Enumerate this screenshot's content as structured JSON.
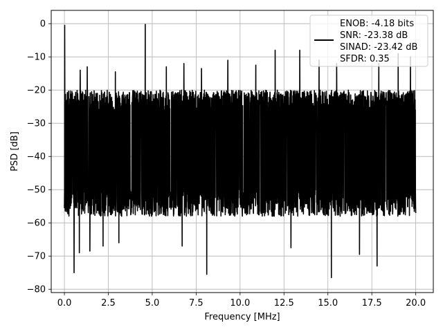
{
  "chart_data": {
    "type": "line",
    "xlabel": "Frequency [MHz]",
    "ylabel": "PSD [dB]",
    "xlim": [
      -0.75,
      21.0
    ],
    "ylim": [
      -81,
      4
    ],
    "x_ticks": [
      0.0,
      2.5,
      5.0,
      7.5,
      10.0,
      12.5,
      15.0,
      17.5,
      20.0
    ],
    "x_tick_labels": [
      "0.0",
      "2.5",
      "5.0",
      "7.5",
      "10.0",
      "12.5",
      "15.0",
      "17.5",
      "20.0"
    ],
    "y_ticks": [
      0,
      -10,
      -20,
      -30,
      -40,
      -50,
      -60,
      -70,
      -80
    ],
    "y_tick_labels": [
      "0",
      "−10",
      "−20",
      "−30",
      "−40",
      "−50",
      "−60",
      "−70",
      "−80"
    ],
    "grid": true,
    "legend_position": "upper right",
    "legend_lines": [
      "ENOB: -4.18 bits",
      "SNR: -23.38 dB",
      "SINAD: -23.42 dB",
      "SFDR: 0.35"
    ],
    "series": [
      {
        "color": "#000000",
        "frequency_range_mhz": [
          0.0,
          20.0
        ],
        "noise_floor_db": {
          "typical_low": -55,
          "typical_high": -22,
          "median": -35
        },
        "peaks": [
          {
            "x": 0.02,
            "y": -0.5
          },
          {
            "x": 4.6,
            "y": -0.2
          },
          {
            "x": 13.4,
            "y": -8.0
          },
          {
            "x": 0.9,
            "y": -14.0
          },
          {
            "x": 1.3,
            "y": -13.0
          },
          {
            "x": 2.9,
            "y": -14.5
          },
          {
            "x": 5.8,
            "y": -13.0
          },
          {
            "x": 6.8,
            "y": -12.0
          },
          {
            "x": 7.8,
            "y": -13.5
          },
          {
            "x": 9.3,
            "y": -11.0
          },
          {
            "x": 10.9,
            "y": -12.5
          },
          {
            "x": 12.0,
            "y": -8.0
          },
          {
            "x": 14.5,
            "y": -11.0
          },
          {
            "x": 15.5,
            "y": -12.0
          },
          {
            "x": 16.8,
            "y": -9.5
          },
          {
            "x": 17.9,
            "y": -12.0
          },
          {
            "x": 19.0,
            "y": -9.0
          },
          {
            "x": 19.7,
            "y": -10.0
          }
        ],
        "dips": [
          {
            "x": 0.55,
            "y": -75.0
          },
          {
            "x": 0.85,
            "y": -69.0
          },
          {
            "x": 1.45,
            "y": -68.5
          },
          {
            "x": 2.2,
            "y": -67.0
          },
          {
            "x": 3.1,
            "y": -66.0
          },
          {
            "x": 6.7,
            "y": -67.0
          },
          {
            "x": 8.1,
            "y": -75.5
          },
          {
            "x": 12.9,
            "y": -67.5
          },
          {
            "x": 15.2,
            "y": -76.5
          },
          {
            "x": 16.8,
            "y": -69.5
          },
          {
            "x": 17.8,
            "y": -73.0
          }
        ]
      }
    ]
  }
}
